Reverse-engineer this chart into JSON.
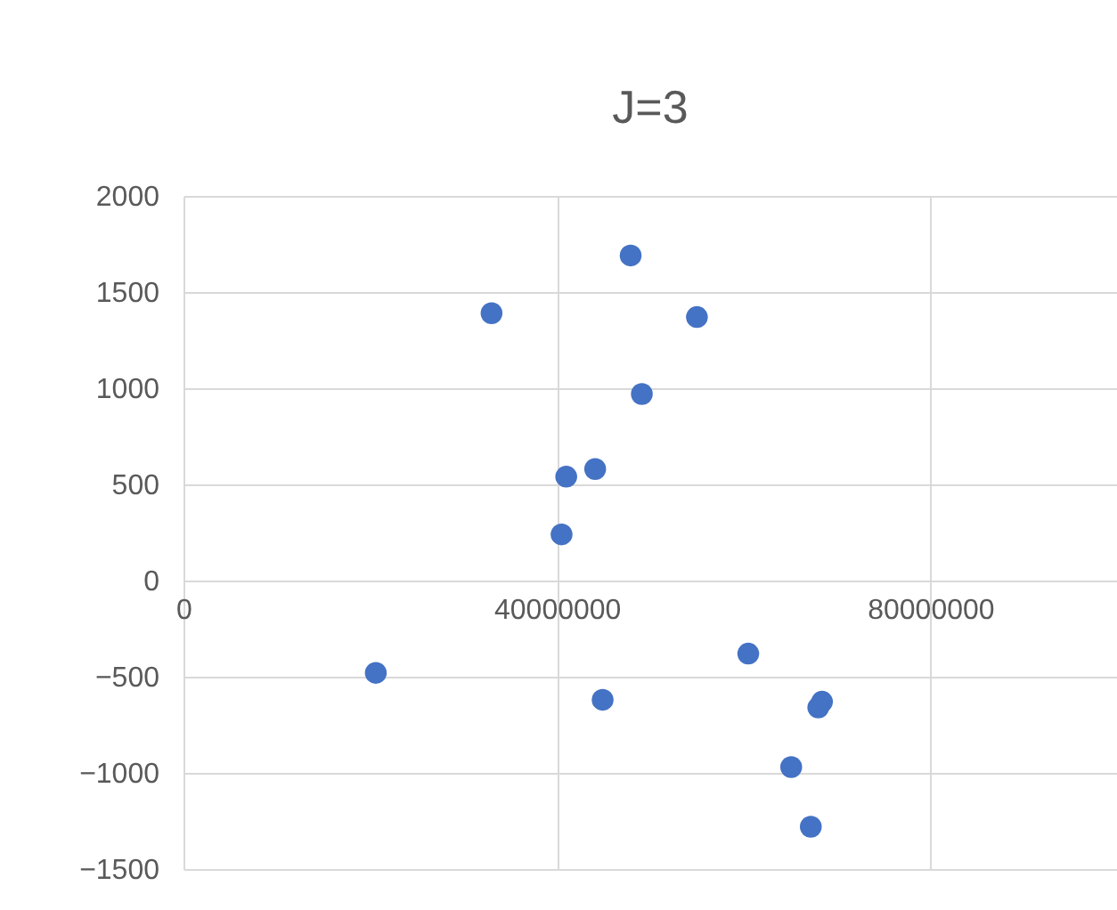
{
  "chart_data": {
    "type": "scatter",
    "title": "J=3",
    "x": [
      20600000,
      33000000,
      47900000,
      55000000,
      49100000,
      41000000,
      44100000,
      40500000,
      44900000,
      60500000,
      68400000,
      68000000,
      65100000,
      67200000
    ],
    "series": [
      {
        "color": "#4472c4",
        "values": [
          -480,
          1390,
          1690,
          1370,
          970,
          540,
          580,
          240,
          -620,
          -380,
          -630,
          -660,
          -970,
          -1280
        ]
      }
    ],
    "xlim": [
      0,
      100000000
    ],
    "xticks": [
      0,
      40000000,
      80000000
    ],
    "ylim": [
      -1500,
      2000
    ],
    "yticks": [
      -1500,
      -1000,
      -500,
      0,
      500,
      1000,
      1500,
      2000
    ],
    "grid": true,
    "marker": "circle"
  }
}
